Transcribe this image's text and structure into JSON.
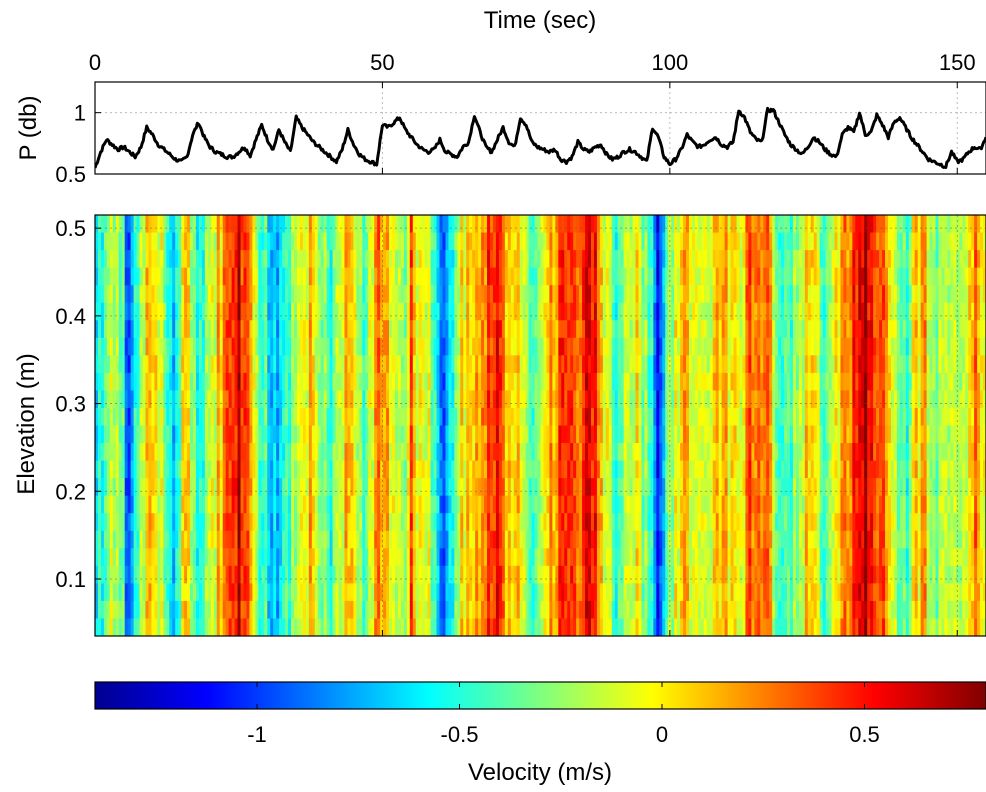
{
  "figure": {
    "top_xlabel": "Time (sec)",
    "top_ylabel": "P (db)",
    "main_ylabel": "Elevation (m)",
    "colorbar_label": "Velocity (m/s)"
  },
  "chart_data": [
    {
      "type": "line",
      "xlabel": "Time (sec)",
      "ylabel": "P (db)",
      "xlim": [
        0,
        155
      ],
      "ylim": [
        0.5,
        1.25
      ],
      "xticks": [
        "0",
        "50",
        "100",
        "150"
      ],
      "yticks": [
        "0.5",
        "1"
      ],
      "grid": true,
      "series": [
        {
          "color": "#000000",
          "x": [
            0,
            1,
            2,
            3,
            4,
            5,
            6,
            7,
            8,
            9,
            10,
            11,
            12,
            13,
            14,
            15,
            16,
            17,
            18,
            19,
            20,
            21,
            22,
            23,
            24,
            25,
            26,
            27,
            28,
            29,
            30,
            31,
            32,
            33,
            34,
            35,
            36,
            37,
            38,
            39,
            40,
            41,
            42,
            43,
            44,
            45,
            46,
            47,
            48,
            49,
            50,
            51,
            52,
            53,
            54,
            55,
            56,
            57,
            58,
            59,
            60,
            61,
            62,
            63,
            64,
            65,
            66,
            67,
            68,
            69,
            70,
            71,
            72,
            73,
            74,
            75,
            76,
            77,
            78,
            79,
            80,
            81,
            82,
            83,
            84,
            85,
            86,
            87,
            88,
            89,
            90,
            91,
            92,
            93,
            94,
            95,
            96,
            97,
            98,
            99,
            100,
            101,
            102,
            103,
            104,
            105,
            106,
            107,
            108,
            109,
            110,
            111,
            112,
            113,
            114,
            115,
            116,
            117,
            118,
            119,
            120,
            121,
            122,
            123,
            124,
            125,
            126,
            127,
            128,
            129,
            130,
            131,
            132,
            133,
            134,
            135,
            136,
            137,
            138,
            139,
            140,
            141,
            142,
            143,
            144,
            145,
            146,
            147,
            148,
            149,
            150,
            151,
            152,
            153,
            154,
            155
          ],
          "y": [
            0.55,
            0.68,
            0.78,
            0.74,
            0.7,
            0.72,
            0.68,
            0.64,
            0.72,
            0.88,
            0.82,
            0.74,
            0.7,
            0.66,
            0.62,
            0.6,
            0.64,
            0.82,
            0.92,
            0.8,
            0.72,
            0.68,
            0.66,
            0.64,
            0.64,
            0.68,
            0.72,
            0.65,
            0.78,
            0.9,
            0.78,
            0.7,
            0.86,
            0.76,
            0.68,
            0.96,
            0.88,
            0.82,
            0.76,
            0.72,
            0.68,
            0.64,
            0.6,
            0.7,
            0.86,
            0.74,
            0.66,
            0.62,
            0.6,
            0.58,
            0.9,
            0.88,
            0.92,
            0.96,
            0.86,
            0.8,
            0.74,
            0.7,
            0.68,
            0.7,
            0.78,
            0.68,
            0.66,
            0.64,
            0.72,
            0.76,
            0.98,
            0.84,
            0.72,
            0.68,
            0.78,
            0.88,
            0.76,
            0.72,
            0.96,
            0.9,
            0.76,
            0.72,
            0.7,
            0.68,
            0.7,
            0.62,
            0.6,
            0.64,
            0.76,
            0.7,
            0.68,
            0.72,
            0.74,
            0.66,
            0.62,
            0.64,
            0.68,
            0.7,
            0.68,
            0.64,
            0.6,
            0.88,
            0.8,
            0.64,
            0.58,
            0.62,
            0.7,
            0.82,
            0.76,
            0.72,
            0.74,
            0.78,
            0.8,
            0.74,
            0.72,
            0.76,
            1.02,
            0.96,
            0.84,
            0.78,
            0.76,
            1.02,
            1.02,
            0.92,
            0.82,
            0.74,
            0.7,
            0.66,
            0.72,
            0.8,
            0.76,
            0.7,
            0.66,
            0.64,
            0.82,
            0.88,
            0.84,
            1.0,
            0.82,
            0.84,
            0.98,
            0.9,
            0.8,
            0.92,
            0.96,
            0.88,
            0.8,
            0.74,
            0.68,
            0.62,
            0.6,
            0.58,
            0.56,
            0.68,
            0.6,
            0.62,
            0.68,
            0.72,
            0.7,
            0.8
          ]
        }
      ]
    },
    {
      "type": "heatmap",
      "xlabel": "Time (sec)",
      "ylabel": "Elevation (m)",
      "xlim": [
        0,
        155
      ],
      "ylim": [
        0.035,
        0.515
      ],
      "yticks": [
        "0.1",
        "0.2",
        "0.3",
        "0.4",
        "0.5"
      ],
      "grid": true,
      "colormap": "jet",
      "clim": [
        -1.4,
        0.8
      ],
      "time_profile": {
        "x": [
          0,
          1,
          2,
          3,
          4,
          5,
          6,
          7,
          8,
          9,
          10,
          11,
          12,
          13,
          14,
          15,
          16,
          17,
          18,
          19,
          20,
          21,
          22,
          23,
          24,
          25,
          26,
          27,
          28,
          29,
          30,
          31,
          32,
          33,
          34,
          35,
          36,
          37,
          38,
          39,
          40,
          41,
          42,
          43,
          44,
          45,
          46,
          47,
          48,
          49,
          50,
          51,
          52,
          53,
          54,
          55,
          56,
          57,
          58,
          59,
          60,
          61,
          62,
          63,
          64,
          65,
          66,
          67,
          68,
          69,
          70,
          71,
          72,
          73,
          74,
          75,
          76,
          77,
          78,
          79,
          80,
          81,
          82,
          83,
          84,
          85,
          86,
          87,
          88,
          89,
          90,
          91,
          92,
          93,
          94,
          95,
          96,
          97,
          98,
          99,
          100,
          101,
          102,
          103,
          104,
          105,
          106,
          107,
          108,
          109,
          110,
          111,
          112,
          113,
          114,
          115,
          116,
          117,
          118,
          119,
          120,
          121,
          122,
          123,
          124,
          125,
          126,
          127,
          128,
          129,
          130,
          131,
          132,
          133,
          134,
          135,
          136,
          137,
          138,
          139,
          140,
          141,
          142,
          143,
          144,
          145,
          146,
          147,
          148,
          149,
          150,
          151,
          152,
          153,
          154,
          155
        ],
        "velocity": [
          -0.5,
          -0.6,
          -0.4,
          -0.2,
          -0.3,
          -0.5,
          -1.1,
          -0.4,
          -0.2,
          0.0,
          0.1,
          0.0,
          -0.3,
          -0.5,
          -0.7,
          -0.2,
          0.1,
          -0.3,
          -0.6,
          -0.4,
          -0.1,
          0.0,
          0.1,
          0.3,
          0.5,
          0.6,
          0.4,
          0.2,
          -0.2,
          -0.4,
          -0.5,
          -0.8,
          -0.6,
          -0.3,
          -0.4,
          -0.2,
          -0.1,
          0.0,
          0.1,
          -0.1,
          -0.3,
          -0.5,
          -0.2,
          0.0,
          0.1,
          0.0,
          -0.3,
          -0.4,
          -0.1,
          0.1,
          0.3,
          0.0,
          0.1,
          -0.2,
          -0.4,
          0.5,
          -0.1,
          0.0,
          -0.1,
          -0.4,
          -0.7,
          -1.0,
          -0.6,
          -0.3,
          0.0,
          0.1,
          0.0,
          0.2,
          0.3,
          0.4,
          0.5,
          0.3,
          0.1,
          0.0,
          0.1,
          -0.2,
          -0.4,
          -0.2,
          0.0,
          0.1,
          0.2,
          0.4,
          0.6,
          0.5,
          0.3,
          0.4,
          0.5,
          0.6,
          0.2,
          -0.1,
          -0.3,
          -0.5,
          -0.3,
          -0.1,
          0.0,
          -0.2,
          -0.4,
          -0.6,
          -1.0,
          -0.6,
          -0.3,
          -0.1,
          0.0,
          0.1,
          0.0,
          -0.2,
          -0.1,
          0.0,
          0.1,
          0.2,
          0.1,
          0.0,
          -0.1,
          0.1,
          0.3,
          0.2,
          0.1,
          0.2,
          -0.1,
          -0.3,
          -0.5,
          -0.4,
          -0.2,
          -0.1,
          0.0,
          0.1,
          -0.2,
          -0.4,
          -0.2,
          0.1,
          0.2,
          0.3,
          0.4,
          0.6,
          0.7,
          0.6,
          0.4,
          0.3,
          0.1,
          0.0,
          -0.3,
          -0.5,
          -0.2,
          0.0,
          0.2,
          -0.1,
          -0.3,
          -0.2,
          0.0,
          -0.1,
          -0.3,
          -0.1,
          0.0,
          0.2,
          0.1,
          0.0
        ]
      }
    },
    {
      "type": "colorbar",
      "label": "Velocity (m/s)",
      "colormap": "jet",
      "clim": [
        -1.4,
        0.8
      ],
      "ticks": [
        {
          "value": -1,
          "label": "-1"
        },
        {
          "value": -0.5,
          "label": "-0.5"
        },
        {
          "value": 0,
          "label": "0"
        },
        {
          "value": 0.5,
          "label": "0.5"
        }
      ]
    }
  ]
}
